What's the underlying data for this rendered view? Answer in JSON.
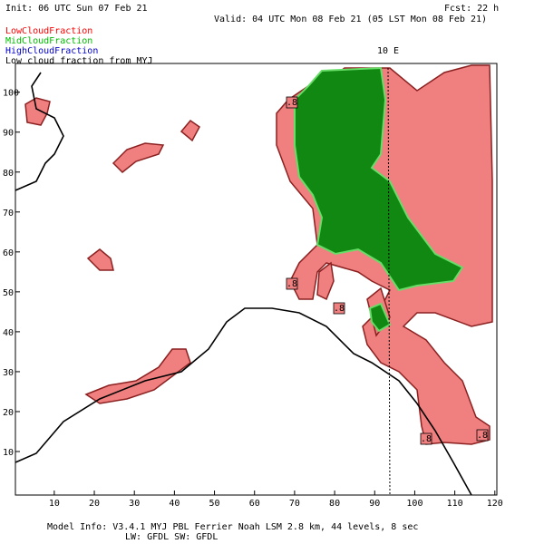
{
  "header": {
    "init": "Init: 06 UTC Sun 07 Feb 21",
    "fcst": "Fcst:   22 h",
    "valid": "Valid: 04 UTC Mon 08 Feb 21 (05 LST Mon 08 Feb 21)"
  },
  "legend": [
    {
      "name": "LowCloudFraction",
      "color": "#ff0000"
    },
    {
      "name": "MidCloudFraction",
      "color": "#00bb00"
    },
    {
      "name": "HighCloudFraction",
      "color": "#0000cc"
    },
    {
      "name": "Low cloud fraction from MYJ",
      "color": "#000000"
    }
  ],
  "meridian_label": "10 E",
  "contour_labels": [
    ".8",
    ".8",
    ".8",
    ".8",
    ".8"
  ],
  "axes": {
    "xlim": [
      0.3,
      120.5
    ],
    "xticks": [
      10,
      20,
      30,
      40,
      50,
      60,
      70,
      80,
      90,
      100,
      110,
      120
    ],
    "ylim": [
      -0.9,
      107.2
    ],
    "yticks": [
      10,
      20,
      30,
      40,
      50,
      60,
      70,
      80,
      90,
      100
    ]
  },
  "footer": {
    "line1": "Model Info: V3.4.1       MYJ PBL  Ferrier     Noah LSM  2.8 km,  44 levels,    8 sec",
    "line2": "LW: GFDL SW: GFDL"
  }
}
